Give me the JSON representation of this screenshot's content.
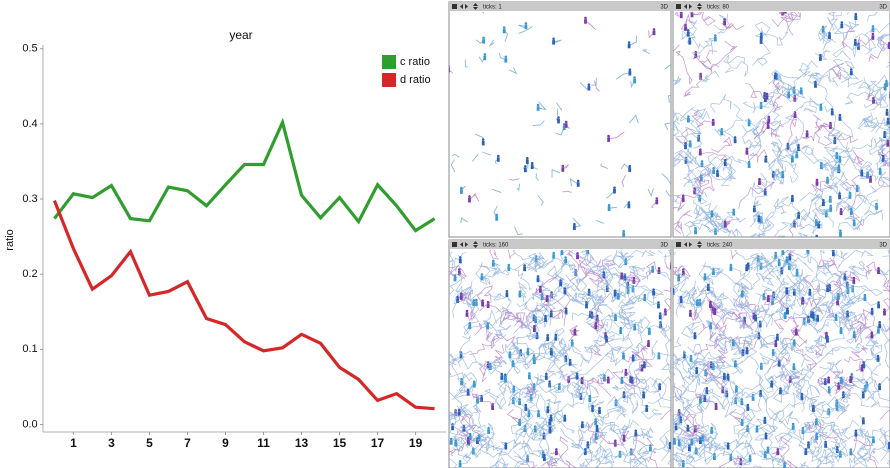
{
  "chart_data": {
    "type": "line",
    "x_label": "year",
    "y_label": "ratio",
    "x": [
      0,
      1,
      2,
      3,
      4,
      5,
      6,
      7,
      8,
      9,
      10,
      11,
      12,
      13,
      14,
      15,
      16,
      17,
      18,
      19,
      20
    ],
    "series": [
      {
        "name": "c ratio",
        "color": "#2f9e2f",
        "values": [
          0.274,
          0.307,
          0.302,
          0.318,
          0.274,
          0.271,
          0.316,
          0.311,
          0.291,
          0.319,
          0.346,
          0.346,
          0.402,
          0.305,
          0.275,
          0.302,
          0.27,
          0.319,
          0.291,
          0.258,
          0.274
        ]
      },
      {
        "name": "d ratio",
        "color": "#d62728",
        "values": [
          0.298,
          0.234,
          0.18,
          0.198,
          0.23,
          0.172,
          0.177,
          0.19,
          0.141,
          0.133,
          0.11,
          0.098,
          0.102,
          0.12,
          0.108,
          0.076,
          0.06,
          0.032,
          0.041,
          0.023,
          0.021
        ]
      }
    ],
    "xlim": [
      -0.6,
      20.6
    ],
    "xticks": [
      1,
      3,
      5,
      7,
      9,
      11,
      13,
      15,
      17,
      19
    ],
    "ylim": [
      -0.01,
      0.505
    ],
    "yticks": [
      {
        "value": 0,
        "label": "0.0"
      },
      0.1,
      0.2,
      0.3,
      0.4,
      0.5
    ],
    "legend": "top-right",
    "grid": false
  },
  "panels": [
    {
      "label": "ticks: 1",
      "button": "3D"
    },
    {
      "label": "ticks: 80",
      "button": "3D"
    },
    {
      "label": "ticks: 160",
      "button": "3D"
    },
    {
      "label": "ticks: 240",
      "button": "3D"
    }
  ]
}
